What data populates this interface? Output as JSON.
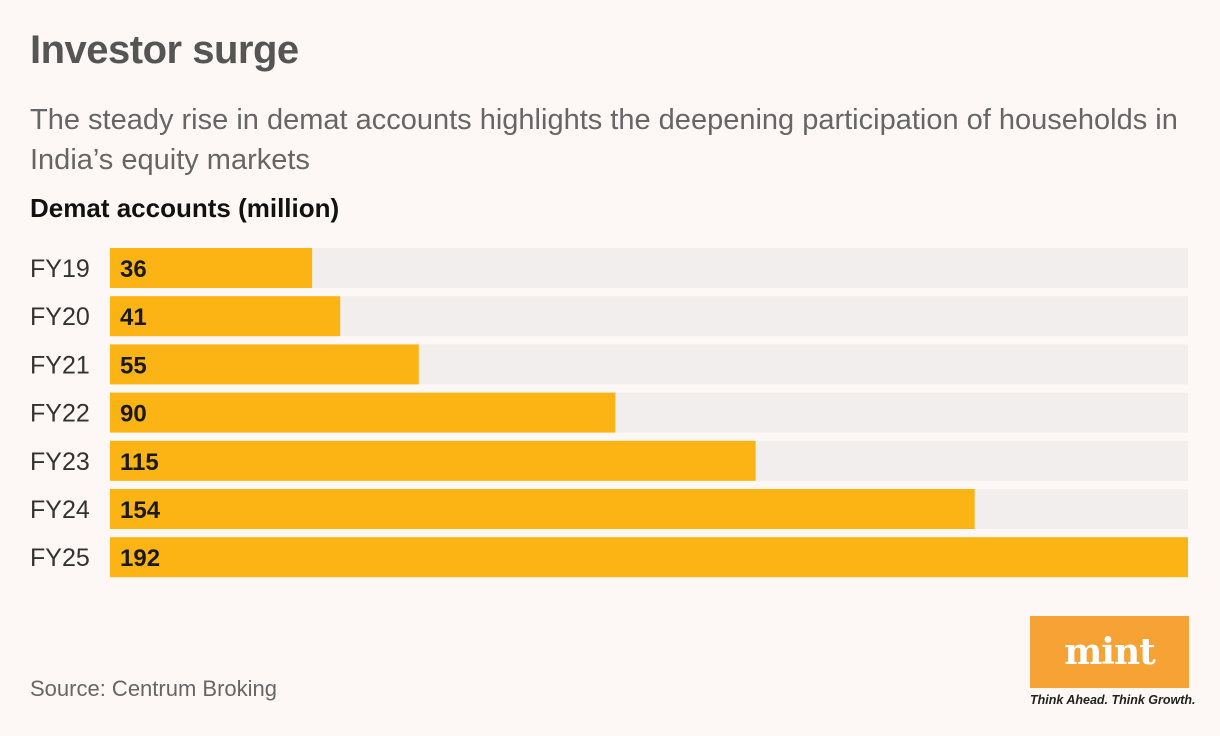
{
  "header": {
    "title": "Investor surge",
    "subtitle": "The steady rise in demat accounts highlights the deepening participation of households in India’s equity markets",
    "chart_label": "Demat accounts (million)"
  },
  "chart_data": {
    "type": "bar",
    "orientation": "horizontal",
    "categories": [
      "FY19",
      "FY20",
      "FY21",
      "FY22",
      "FY23",
      "FY24",
      "FY25"
    ],
    "values": [
      36,
      41,
      55,
      90,
      115,
      154,
      192
    ],
    "xlim": [
      0,
      192
    ],
    "grid": false,
    "legend": "none",
    "colors": {
      "bar": "#fcb414",
      "track": "#f2eeed",
      "label_text": "#333333",
      "value_text": "#1a1a1a"
    }
  },
  "footer": {
    "source": "Source: Centrum Broking"
  },
  "brand": {
    "logo_text": "mint",
    "tagline": "Think Ahead. Think Growth.",
    "logo_color": "#f7a234"
  }
}
